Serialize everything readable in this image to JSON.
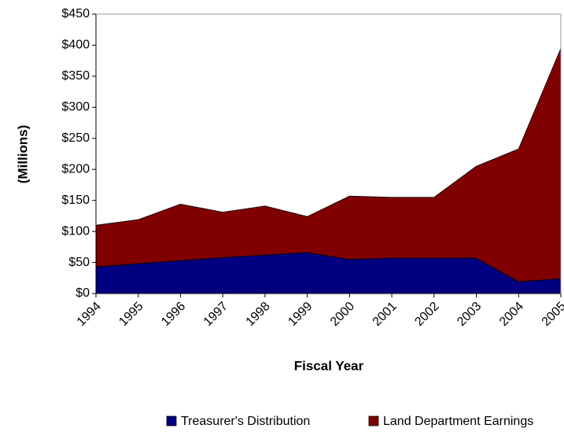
{
  "chart_data": {
    "type": "stacked_area",
    "xlabel": "Fiscal Year",
    "ylabel": "(Millions)",
    "categories": [
      "1994",
      "1995",
      "1996",
      "1997",
      "1998",
      "1999",
      "2000",
      "2001",
      "2002",
      "2003",
      "2004",
      "2005"
    ],
    "series": [
      {
        "name": "Treasurer's Distribution",
        "color": "#000080",
        "values": [
          43,
          48,
          53,
          58,
          62,
          66,
          55,
          57,
          57,
          57,
          19,
          24
        ]
      },
      {
        "name": "Land Department Earnings",
        "color": "#800000",
        "values": [
          67,
          71,
          91,
          73,
          79,
          58,
          102,
          98,
          98,
          148,
          214,
          371
        ]
      }
    ],
    "ylim": [
      0,
      450
    ],
    "yticks": [
      {
        "value": 0,
        "label": "$0"
      },
      {
        "value": 50,
        "label": "$50"
      },
      {
        "value": 100,
        "label": "$100"
      },
      {
        "value": 150,
        "label": "$150"
      },
      {
        "value": 200,
        "label": "$200"
      },
      {
        "value": 250,
        "label": "$250"
      },
      {
        "value": 300,
        "label": "$300"
      },
      {
        "value": 350,
        "label": "$350"
      },
      {
        "value": 400,
        "label": "$400"
      },
      {
        "value": 450,
        "label": "$450"
      }
    ],
    "legend": "bottom"
  }
}
